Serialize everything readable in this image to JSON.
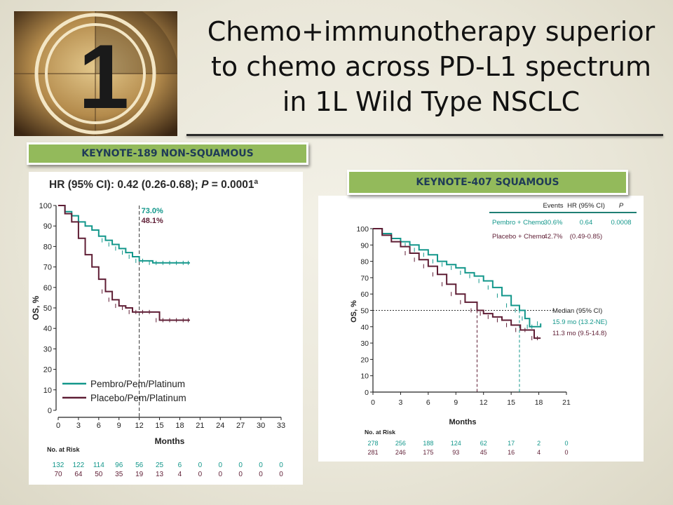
{
  "slide": {
    "title_lines": [
      "Chemo+immunotherapy superior",
      "to chemo across PD-L1 spectrum",
      "in 1L Wild Type NSCLC"
    ],
    "countdown_number": "1",
    "colors": {
      "banner": "#93ba5b",
      "pembro": "#13978b",
      "placebo": "#5f1e35",
      "table_rule": "#1f7f74"
    }
  },
  "left": {
    "banner": "KEYNOTE-189 NON-SQUAMOUS",
    "hr_text": "HR (95% CI): 0.42 (0.26-0.68); ",
    "p_text": "P",
    "p_value": " = 0.0001",
    "p_sup": "a",
    "point_labels": [
      "73.0%",
      "48.1%"
    ],
    "at_risk_title": "No. at Risk",
    "at_risk": {
      "pembro": [
        "132",
        "122",
        "114",
        "96",
        "56",
        "25",
        "6",
        "0",
        "0",
        "0",
        "0",
        "0"
      ],
      "placebo": [
        "70",
        "64",
        "50",
        "35",
        "19",
        "13",
        "4",
        "0",
        "0",
        "0",
        "0",
        "0"
      ]
    }
  },
  "right": {
    "banner": "KEYNOTE-407 SQUAMOUS",
    "table_header": [
      "Events",
      "HR (95% CI)",
      "P"
    ],
    "table_rows": [
      [
        "Pembro + Chemo",
        "30.6%",
        "0.64",
        "0.0008"
      ],
      [
        "Placebo + Chemo",
        "42.7%",
        "(0.49-0.85)",
        ""
      ]
    ],
    "median_title": "Median (95% CI)",
    "medians": [
      "15.9 mo (13.2-NE)",
      "11.3 mo (9.5-14.8)"
    ],
    "at_risk_title": "No. at Risk",
    "at_risk": {
      "pembro": [
        "278",
        "256",
        "188",
        "124",
        "62",
        "17",
        "2",
        "0"
      ],
      "placebo": [
        "281",
        "246",
        "175",
        "93",
        "45",
        "16",
        "4",
        "0"
      ]
    }
  },
  "chart_data": [
    {
      "type": "line",
      "title": "",
      "xlabel": "Months",
      "ylabel": "OS, %",
      "xlim": [
        0,
        33
      ],
      "ylim": [
        0,
        100
      ],
      "xticks": [
        0,
        3,
        6,
        9,
        12,
        15,
        18,
        21,
        24,
        27,
        30,
        33
      ],
      "yticks": [
        0,
        10,
        20,
        30,
        40,
        50,
        60,
        70,
        80,
        90,
        100
      ],
      "legend": "bottom-left",
      "reference_line_x": 12,
      "series": [
        {
          "name": "Pembro/Pem/Platinum",
          "color": "#13978b",
          "x": [
            0,
            1,
            2,
            3,
            4,
            5,
            6,
            7,
            8,
            9,
            10,
            11,
            12,
            13,
            14,
            15,
            16,
            17,
            18,
            19,
            19.5
          ],
          "y": [
            100,
            97,
            95,
            92,
            90,
            88,
            85,
            83,
            81,
            79,
            77,
            75,
            73,
            73,
            72,
            72,
            72,
            72,
            72,
            72,
            72
          ]
        },
        {
          "name": "Placebo/Pem/Platinum",
          "color": "#5f1e35",
          "x": [
            0,
            1,
            2,
            3,
            4,
            5,
            6,
            7,
            8,
            9,
            10,
            11,
            12,
            13,
            14,
            15,
            16,
            17,
            18,
            19,
            19.5
          ],
          "y": [
            100,
            96,
            92,
            84,
            76,
            70,
            64,
            58,
            54,
            51,
            50,
            48,
            48,
            48,
            48,
            44,
            44,
            44,
            44,
            44,
            44
          ]
        }
      ]
    },
    {
      "type": "line",
      "title": "",
      "xlabel": "Months",
      "ylabel": "OS, %",
      "xlim": [
        0,
        21
      ],
      "ylim": [
        0,
        100
      ],
      "xticks": [
        0,
        3,
        6,
        9,
        12,
        15,
        18,
        21
      ],
      "yticks": [
        0,
        10,
        20,
        30,
        40,
        50,
        60,
        70,
        80,
        90,
        100
      ],
      "legend": "top-right",
      "reference_line_y": 50,
      "series": [
        {
          "name": "Pembro + Chemo",
          "color": "#13978b",
          "median": 15.9,
          "x": [
            0,
            1,
            2,
            3,
            4,
            5,
            6,
            7,
            8,
            9,
            10,
            11,
            12,
            13,
            14,
            15,
            15.9,
            16.5,
            17,
            17.5,
            18.2
          ],
          "y": [
            100,
            97,
            94,
            92,
            90,
            87,
            84,
            80,
            78,
            76,
            73,
            71,
            68,
            64,
            59,
            53,
            50,
            45,
            40,
            40,
            42
          ]
        },
        {
          "name": "Placebo + Chemo",
          "color": "#5f1e35",
          "median": 11.3,
          "x": [
            0,
            1,
            2,
            3,
            4,
            5,
            6,
            7,
            8,
            9,
            10,
            11.3,
            12,
            13,
            14,
            15,
            16,
            17,
            17.5,
            18.2
          ],
          "y": [
            100,
            96,
            92,
            89,
            85,
            81,
            77,
            72,
            66,
            60,
            55,
            50,
            48,
            46,
            44,
            41,
            38,
            38,
            33,
            33
          ]
        }
      ]
    }
  ]
}
